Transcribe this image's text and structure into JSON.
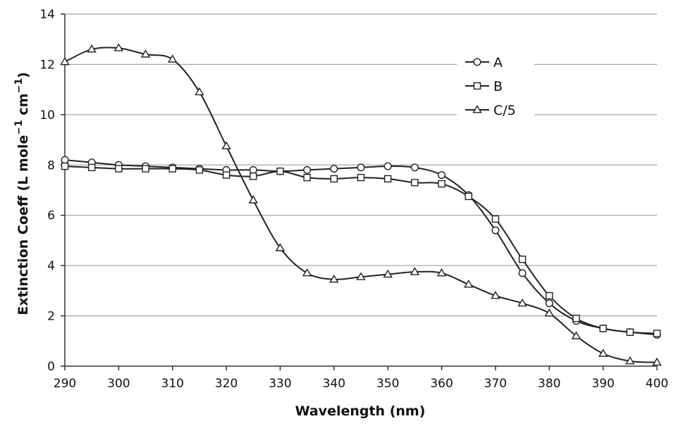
{
  "chart_data": {
    "type": "line",
    "xlabel": "Wavelength (nm)",
    "ylabel_main": "Extinction Coeff (L mole",
    "ylabel_sup1": "−1",
    "ylabel_mid": " cm",
    "ylabel_sup2": "−1",
    "ylabel_end": ")",
    "xlim": [
      290,
      400
    ],
    "ylim": [
      0,
      14
    ],
    "xticks": [
      290,
      300,
      310,
      320,
      330,
      340,
      350,
      360,
      370,
      380,
      390,
      400
    ],
    "yticks": [
      0,
      2,
      4,
      6,
      8,
      10,
      12,
      14
    ],
    "grid": "horizontal",
    "legend_position": "top-right",
    "x": [
      290,
      295,
      300,
      305,
      310,
      315,
      320,
      325,
      330,
      335,
      340,
      345,
      350,
      355,
      360,
      365,
      370,
      375,
      380,
      385,
      390,
      395,
      400
    ],
    "series": [
      {
        "name": "A",
        "marker": "circle",
        "values": [
          8.2,
          8.1,
          8.0,
          7.95,
          7.9,
          7.85,
          7.8,
          7.8,
          7.75,
          7.8,
          7.85,
          7.9,
          7.95,
          7.9,
          7.6,
          6.8,
          5.4,
          3.7,
          2.5,
          1.8,
          1.5,
          1.35,
          1.25
        ]
      },
      {
        "name": "B",
        "marker": "square",
        "values": [
          7.95,
          7.9,
          7.85,
          7.85,
          7.85,
          7.8,
          7.6,
          7.55,
          7.75,
          7.5,
          7.45,
          7.5,
          7.45,
          7.3,
          7.25,
          6.75,
          5.85,
          4.25,
          2.8,
          1.9,
          1.5,
          1.35,
          1.3
        ]
      },
      {
        "name": "C/5",
        "marker": "triangle",
        "values": [
          12.1,
          12.6,
          12.65,
          12.4,
          12.2,
          10.9,
          8.75,
          6.6,
          4.7,
          3.7,
          3.45,
          3.55,
          3.65,
          3.75,
          3.7,
          3.25,
          2.8,
          2.5,
          2.1,
          1.2,
          0.5,
          0.2,
          0.15
        ]
      }
    ]
  }
}
